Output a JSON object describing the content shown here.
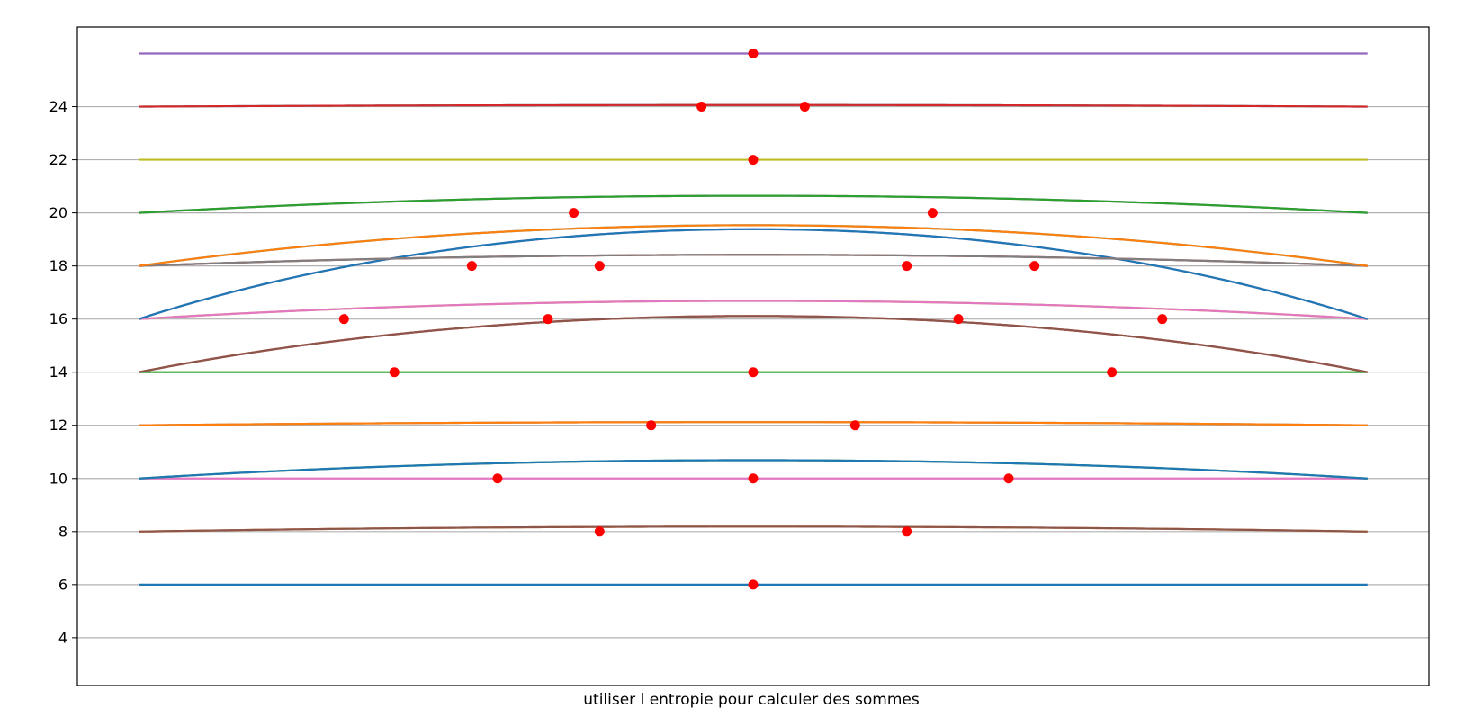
{
  "chart_data": {
    "type": "line",
    "title": "",
    "xlabel": "utiliser l entropie pour calculer des sommes",
    "ylabel": "",
    "x_ticks_visible": false,
    "xlim": [
      -0.05,
      1.05
    ],
    "ylim": [
      2.2,
      27
    ],
    "yticks": [
      4,
      6,
      8,
      10,
      12,
      14,
      16,
      18,
      20,
      22,
      24
    ],
    "grid": "horizontal",
    "legend": "none",
    "curve_shape": "entropy-shaped arc through the two endpoints and the marked peak",
    "point_color": "#ff0000",
    "series": [
      {
        "p": 0.5,
        "peak": 6,
        "color": "#1f77b4"
      },
      {
        "p": 0.375,
        "peak": 8,
        "color": "#ff7f0e"
      },
      {
        "p": 0.625,
        "peak": 8,
        "color": "#8c564b"
      },
      {
        "p": 0.5,
        "peak": 10,
        "color": "#e377c2"
      },
      {
        "p": 0.292,
        "peak": 10,
        "color": "#2ca02c"
      },
      {
        "p": 0.708,
        "peak": 10,
        "color": "#1f77b4"
      },
      {
        "p": 0.417,
        "peak": 12,
        "color": "#7f7f7f"
      },
      {
        "p": 0.583,
        "peak": 12,
        "color": "#ff7f0e"
      },
      {
        "p": 0.5,
        "peak": 14,
        "color": "#2ca02c"
      },
      {
        "p": 0.208,
        "peak": 14,
        "color": "#d62728"
      },
      {
        "p": 0.792,
        "peak": 14,
        "color": "#8c564b"
      },
      {
        "p": 0.167,
        "peak": 16,
        "color": "#9467bd"
      },
      {
        "p": 0.333,
        "peak": 16,
        "color": "#bcbd22"
      },
      {
        "p": 0.667,
        "peak": 16,
        "color": "#e377c2"
      },
      {
        "p": 0.833,
        "peak": 16,
        "color": "#1f77b4"
      },
      {
        "p": 0.271,
        "peak": 18,
        "color": "#17becf"
      },
      {
        "p": 0.375,
        "peak": 18,
        "color": "#d62728"
      },
      {
        "p": 0.625,
        "peak": 18,
        "color": "#7f7f7f"
      },
      {
        "p": 0.729,
        "peak": 18,
        "color": "#ff7f0e"
      },
      {
        "p": 0.354,
        "peak": 20,
        "color": "#9467bd"
      },
      {
        "p": 0.646,
        "peak": 20,
        "color": "#2ca02c"
      },
      {
        "p": 0.5,
        "peak": 22,
        "color": "#bcbd22"
      },
      {
        "p": 0.458,
        "peak": 24,
        "color": "#17becf"
      },
      {
        "p": 0.542,
        "peak": 24,
        "color": "#d62728"
      },
      {
        "p": 0.5,
        "peak": 26,
        "color": "#9467bd"
      }
    ]
  }
}
